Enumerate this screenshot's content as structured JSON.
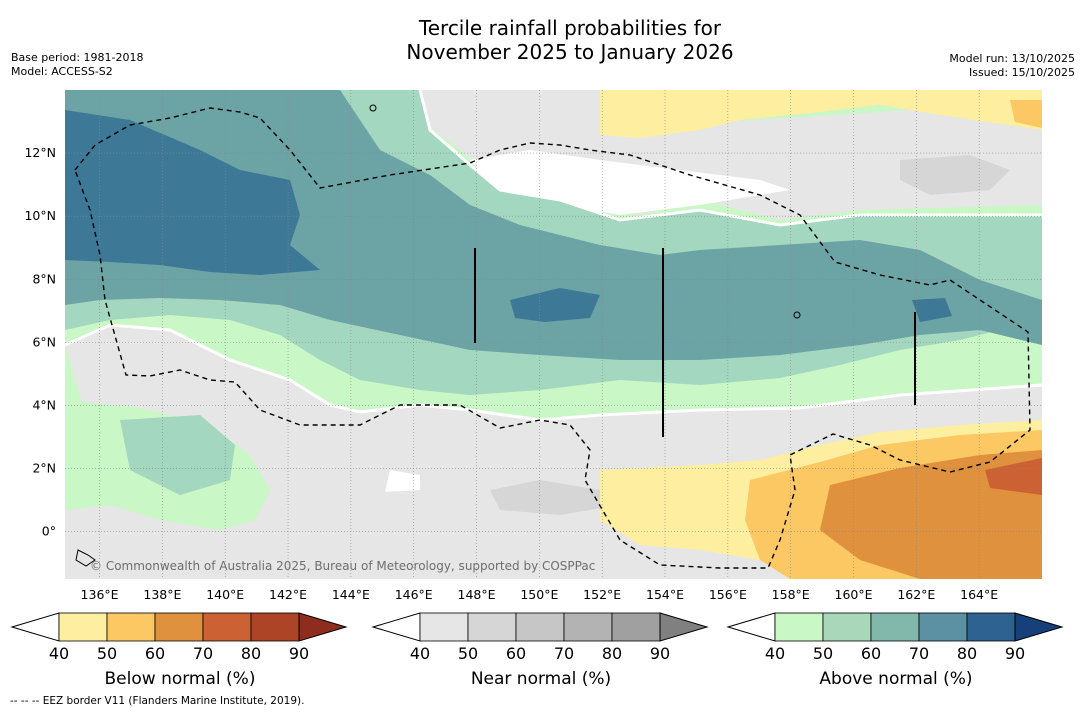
{
  "title": {
    "line1": "Tercile rainfall probabilities for",
    "line2": "November 2025 to January 2026"
  },
  "meta_left": {
    "base_period": "Base period: 1981-2018",
    "model": "Model: ACCESS-S2"
  },
  "meta_right": {
    "model_run": "Model run: 13/10/2025",
    "issued": "Issued: 15/10/2025"
  },
  "map": {
    "lon_labels": [
      "136°E",
      "138°E",
      "140°E",
      "142°E",
      "144°E",
      "146°E",
      "148°E",
      "150°E",
      "152°E",
      "154°E",
      "156°E",
      "158°E",
      "160°E",
      "162°E",
      "164°E"
    ],
    "lon_values": [
      136,
      138,
      140,
      142,
      144,
      146,
      148,
      150,
      152,
      154,
      156,
      158,
      160,
      162,
      164
    ],
    "lat_labels": [
      "12°N",
      "10°N",
      "8°N",
      "6°N",
      "4°N",
      "2°N",
      "0°"
    ],
    "lat_values": [
      12,
      10,
      8,
      6,
      4,
      2,
      0
    ],
    "lon_range": [
      134.9,
      166.0
    ],
    "lat_range": [
      -1.5,
      14.0
    ],
    "copyright": "© Commonwealth of Australia 2025, Bureau of Meteorology, supported by COSPPac"
  },
  "colorbars": [
    {
      "title": "Below normal (%)",
      "ticks": [
        "40",
        "50",
        "60",
        "70",
        "80",
        "90"
      ],
      "colors": [
        "#fdeea0",
        "#fcc863",
        "#e0913e",
        "#cc6133",
        "#ad4426",
        "#8e2c1d"
      ]
    },
    {
      "title": "Near normal (%)",
      "ticks": [
        "40",
        "50",
        "60",
        "70",
        "80",
        "90"
      ],
      "colors": [
        "#e6e6e6",
        "#d6d6d6",
        "#c6c6c6",
        "#b3b3b3",
        "#a0a0a0",
        "#808080"
      ]
    },
    {
      "title": "Above normal (%)",
      "ticks": [
        "40",
        "50",
        "60",
        "70",
        "80",
        "90"
      ],
      "colors": [
        "#c9f7c6",
        "#a8d8b9",
        "#82b7ab",
        "#5b91a3",
        "#2e6291",
        "#173f7a"
      ]
    }
  ],
  "footer": "--  --  -- EEZ border V11 (Flanders Marine Institute, 2019).",
  "colors": {
    "near40": "#e6e6e6",
    "near50": "#d6d6d6",
    "above40": "#c9f7c6",
    "above50": "#a3d7bf",
    "above60": "#6ca3a4",
    "above70": "#3e7897",
    "below40": "#fdeea0",
    "below50": "#fcc863",
    "below60": "#e0913e",
    "below70": "#cc6133"
  }
}
